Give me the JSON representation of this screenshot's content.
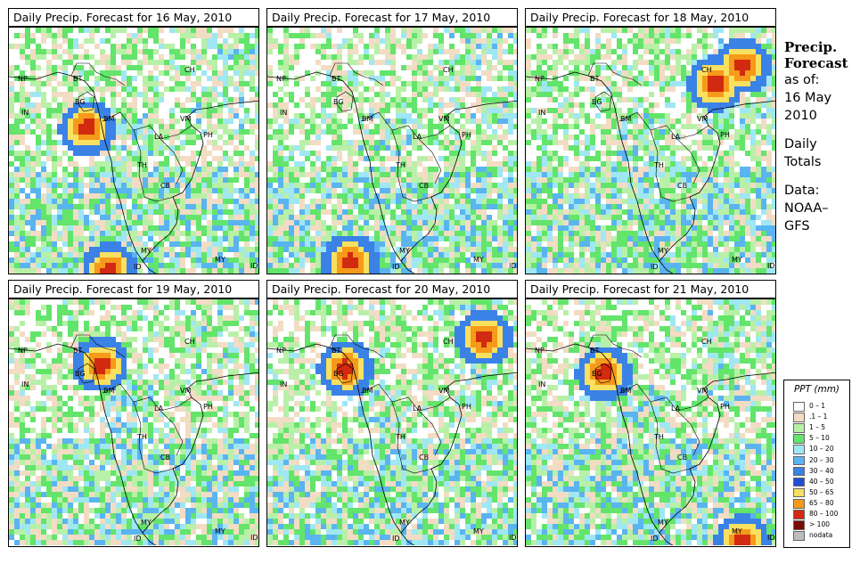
{
  "panels": [
    {
      "title": "Daily Precip. Forecast for  16 May, 2010",
      "seed": 16,
      "hot": [
        [
          85,
          110
        ],
        [
          110,
          270
        ]
      ]
    },
    {
      "title": "Daily Precip. Forecast for  17 May, 2010",
      "seed": 17,
      "hot": [
        [
          90,
          260
        ]
      ]
    },
    {
      "title": "Daily Precip. Forecast for  18 May, 2010",
      "seed": 18,
      "hot": [
        [
          240,
          40
        ],
        [
          210,
          60
        ]
      ]
    },
    {
      "title": "Daily Precip. Forecast for  19 May, 2010",
      "seed": 19,
      "hot": [
        [
          100,
          70
        ]
      ]
    },
    {
      "title": "Daily Precip. Forecast for  20 May, 2010",
      "seed": 20,
      "hot": [
        [
          85,
          75
        ],
        [
          240,
          40
        ]
      ]
    },
    {
      "title": "Daily Precip. Forecast for  21 May, 2010",
      "seed": 21,
      "hot": [
        [
          85,
          80
        ],
        [
          240,
          270
        ]
      ]
    }
  ],
  "country_labels": [
    "NP",
    "BT",
    "BG",
    "IN",
    "BM",
    "CH",
    "VM",
    "LA",
    "TH",
    "CB",
    "MY",
    "MY",
    "ID",
    "ID",
    "PH"
  ],
  "sidebar": {
    "title_line1": "Precip.",
    "title_line2": "Forecast",
    "asof": "as of:",
    "date_line1": "16 May",
    "date_line2": "2010",
    "daily_line1": "Daily",
    "daily_line2": "Totals",
    "data_line1": "Data:",
    "data_line2": "NOAA–",
    "data_line3": "GFS"
  },
  "legend": {
    "title": "PPT (mm)",
    "items": [
      {
        "label": "0 – 1",
        "color": "#ffffff"
      },
      {
        "label": ".1 – 1",
        "color": "#f3dcc4"
      },
      {
        "label": "1 – 5",
        "color": "#b8f0a8"
      },
      {
        "label": "5 – 10",
        "color": "#63e46b"
      },
      {
        "label": "10 – 20",
        "color": "#9fe7f3"
      },
      {
        "label": "20 – 30",
        "color": "#5ab4f0"
      },
      {
        "label": "30 – 40",
        "color": "#3b82e6"
      },
      {
        "label": "40 – 50",
        "color": "#1f4fd4"
      },
      {
        "label": "50 – 65",
        "color": "#f8e060"
      },
      {
        "label": "65 – 80",
        "color": "#f59a1a"
      },
      {
        "label": "80 – 100",
        "color": "#d22a10"
      },
      {
        "label": "> 100",
        "color": "#7a0c05"
      },
      {
        "label": "nodata",
        "color": "#bdbdbd"
      }
    ]
  }
}
